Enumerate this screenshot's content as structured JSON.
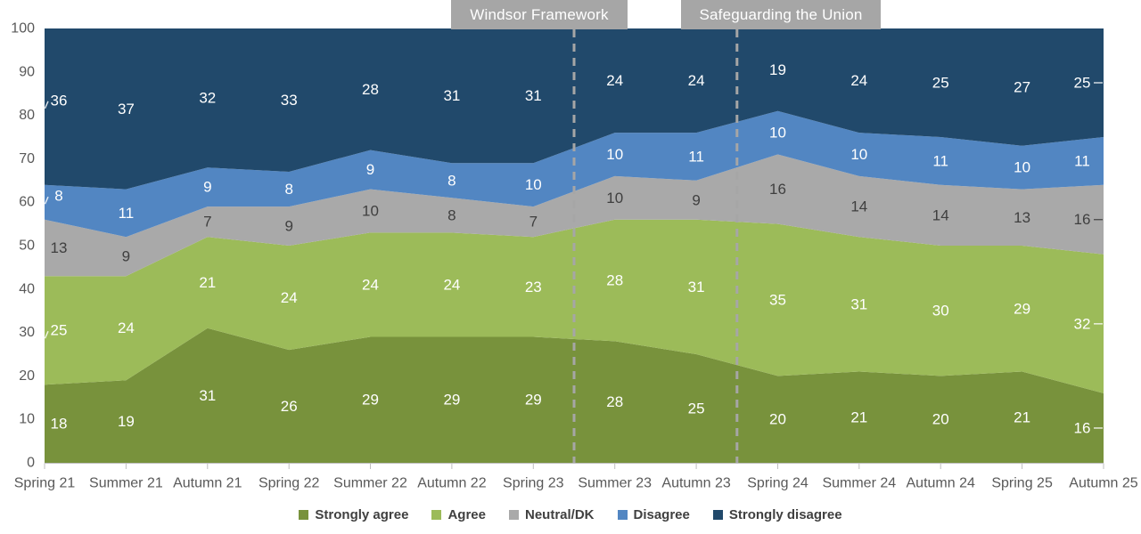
{
  "chart_data": {
    "type": "area",
    "stacked": true,
    "title": "",
    "categories": [
      "Spring 21",
      "Summer 21",
      "Autumn 21",
      "Spring 22",
      "Summer 22",
      "Autumn 22",
      "Spring 23",
      "Summer 23",
      "Autumn 23",
      "Spring 24",
      "Summer 24",
      "Autumn 24",
      "Spring 25",
      "Autumn 25"
    ],
    "series": [
      {
        "name": "Strongly agree",
        "color": "#78923C",
        "label_color": "#FFFFFF",
        "values": [
          18,
          19,
          31,
          26,
          29,
          29,
          29,
          28,
          25,
          20,
          21,
          20,
          21,
          16
        ]
      },
      {
        "name": "Agree",
        "color": "#9CBB59",
        "label_color": "#FFFFFF",
        "values": [
          25,
          24,
          21,
          24,
          24,
          24,
          23,
          28,
          31,
          35,
          31,
          30,
          29,
          32
        ]
      },
      {
        "name": "Neutral/DK",
        "color": "#A9A9A9",
        "label_color": "#3F3F3F",
        "values": [
          13,
          9,
          7,
          9,
          10,
          8,
          7,
          10,
          9,
          16,
          14,
          14,
          13,
          16
        ]
      },
      {
        "name": "Disagree",
        "color": "#5286C2",
        "label_color": "#FFFFFF",
        "values": [
          8,
          11,
          9,
          8,
          9,
          8,
          10,
          10,
          11,
          10,
          10,
          11,
          10,
          11
        ]
      },
      {
        "name": "Strongly disagree",
        "color": "#21496B",
        "label_color": "#FFFFFF",
        "values": [
          36,
          37,
          32,
          33,
          28,
          31,
          31,
          24,
          24,
          19,
          24,
          25,
          27,
          25
        ]
      }
    ],
    "ylim": [
      0,
      100
    ],
    "yticks": [
      0,
      10,
      20,
      30,
      40,
      50,
      60,
      70,
      80,
      90,
      100
    ],
    "grid": false,
    "legend_position": "bottom",
    "annotations": [
      {
        "label": "Windsor Framework",
        "between_categories": [
          "Spring 23",
          "Summer 23"
        ]
      },
      {
        "label": "Safeguarding the Union",
        "between_categories": [
          "Autumn 23",
          "Spring 24"
        ]
      }
    ],
    "axis_color": "#595959",
    "tick_color": "#BFBFBF",
    "annotation_box_color": "#A6A6A6",
    "annotation_text_color": "#FFFFFF",
    "dashed_line_color": "#A6A6A6",
    "xlabel": "",
    "ylabel": ""
  }
}
